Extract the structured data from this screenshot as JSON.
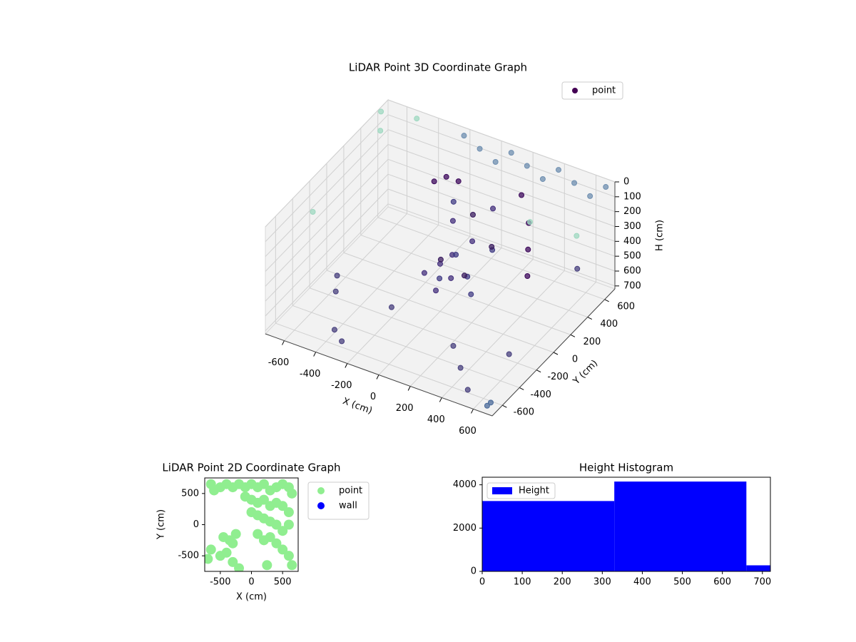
{
  "chart_data": [
    {
      "type": "scatter3d",
      "title": "LiDAR Point 3D Coordinate Graph",
      "xlabel": "X (cm)",
      "ylabel": "Y (cm)",
      "zlabel": "H (cm)",
      "xlim": [
        -720,
        720
      ],
      "ylim": [
        -720,
        720
      ],
      "zlim": [
        0,
        720
      ],
      "z_inverted": true,
      "xticks": [
        -600,
        -400,
        -200,
        0,
        200,
        400,
        600
      ],
      "yticks": [
        -600,
        -400,
        -200,
        0,
        200,
        400,
        600
      ],
      "zticks": [
        0,
        100,
        200,
        300,
        400,
        500,
        600,
        700
      ],
      "grid": true,
      "legend": "upper right",
      "series": [
        {
          "name": "point",
          "color": "#440154",
          "x": [
            0,
            50,
            100,
            -50,
            150,
            200,
            0,
            100,
            250,
            -100,
            50,
            150,
            300,
            200,
            -50,
            100,
            0,
            250,
            -200,
            -150,
            -100,
            300,
            400,
            450,
            500,
            -500,
            -400,
            -600,
            -300,
            400,
            500,
            600,
            -200,
            300,
            600,
            -200,
            -100,
            0,
            100,
            200,
            300,
            400,
            500,
            600,
            700,
            -700,
            -650,
            -700,
            -500,
            300,
            650,
            650,
            700
          ],
          "y": [
            0,
            50,
            0,
            100,
            100,
            -50,
            150,
            200,
            150,
            0,
            -100,
            -150,
            50,
            250,
            250,
            100,
            -50,
            -100,
            300,
            350,
            400,
            400,
            300,
            200,
            100,
            -300,
            -500,
            -100,
            -600,
            -500,
            -600,
            -300,
            -200,
            -400,
            500,
            650,
            650,
            650,
            650,
            650,
            650,
            650,
            650,
            650,
            650,
            600,
            500,
            -200,
            650,
            500,
            400,
            -650,
            -700
          ],
          "z": [
            400,
            350,
            300,
            450,
            250,
            380,
            200,
            150,
            300,
            500,
            420,
            350,
            200,
            100,
            150,
            500,
            550,
            450,
            100,
            80,
            120,
            60,
            150,
            250,
            350,
            600,
            700,
            650,
            680,
            650,
            700,
            600,
            650,
            600,
            500,
            0,
            50,
            100,
            0,
            50,
            100,
            0,
            50,
            100,
            0,
            0,
            50,
            200,
            0,
            300,
            200,
            720,
            650
          ],
          "colors": [
            "#46327e",
            "#46327e",
            "#433e85",
            "#3b1d5f",
            "#46327e",
            "#433e85",
            "#46327e",
            "#3b1d5f",
            "#433e85",
            "#46327e",
            "#433e85",
            "#46327e",
            "#3b1d5f",
            "#46327e",
            "#433e85",
            "#3b1d5f",
            "#46327e",
            "#433e85",
            "#3e0a5c",
            "#3e0a5c",
            "#3e0a5c",
            "#3e0a5c",
            "#3e0a5c",
            "#3e0a5c",
            "#3e0a5c",
            "#48407e",
            "#48407e",
            "#48407e",
            "#48407e",
            "#48407e",
            "#48407e",
            "#48407e",
            "#48407e",
            "#48407e",
            "#48407e",
            "#6f8fb0",
            "#6f8fb0",
            "#6f8fb0",
            "#6f8fb0",
            "#6f8fb0",
            "#6f8fb0",
            "#6f8fb0",
            "#6f8fb0",
            "#6f8fb0",
            "#6f8fb0",
            "#9ed8c0",
            "#9ed8c0",
            "#9ed8c0",
            "#9ed8c0",
            "#9ed8c0",
            "#9ed8c0",
            "#4a6a9a",
            "#4a6a9a"
          ]
        }
      ]
    },
    {
      "type": "scatter",
      "title": "LiDAR Point 2D Coordinate Graph",
      "xlabel": "X (cm)",
      "ylabel": "Y (cm)",
      "xlim": [
        -750,
        750
      ],
      "ylim": [
        -750,
        750
      ],
      "xticks": [
        -500,
        0,
        500
      ],
      "yticks": [
        -500,
        0,
        500
      ],
      "legend": "outside right",
      "series": [
        {
          "name": "point",
          "color": "#90ee90",
          "x": [
            -650,
            -600,
            -500,
            -400,
            -300,
            -200,
            -100,
            0,
            100,
            200,
            300,
            400,
            500,
            600,
            650,
            -100,
            0,
            100,
            200,
            300,
            400,
            500,
            600,
            0,
            100,
            200,
            300,
            400,
            500,
            600,
            -450,
            -350,
            -300,
            -250,
            -400,
            -500,
            -650,
            -700,
            -300,
            -200,
            200,
            300,
            400,
            500,
            600,
            650,
            100,
            250
          ],
          "y": [
            650,
            550,
            600,
            650,
            600,
            650,
            600,
            650,
            600,
            650,
            550,
            600,
            650,
            600,
            500,
            450,
            400,
            350,
            400,
            300,
            350,
            300,
            200,
            200,
            150,
            100,
            50,
            0,
            -100,
            0,
            -200,
            -250,
            -300,
            -150,
            -450,
            -500,
            -400,
            -550,
            -600,
            -700,
            -250,
            -200,
            -300,
            -400,
            -500,
            -650,
            -150,
            -650
          ]
        },
        {
          "name": "wall",
          "color": "#0000ff",
          "x": [],
          "y": []
        }
      ]
    },
    {
      "type": "histogram",
      "title": "Height Histogram",
      "name": "Height",
      "color": "#0000ff",
      "bins": [
        0,
        330,
        660,
        720
      ],
      "counts": [
        3250,
        4150,
        280
      ],
      "xlim": [
        0,
        720
      ],
      "ylim": [
        0,
        4350
      ],
      "xticks": [
        0,
        100,
        200,
        300,
        400,
        500,
        600,
        700
      ],
      "yticks": [
        0,
        2000,
        4000
      ],
      "legend": "upper left"
    }
  ]
}
